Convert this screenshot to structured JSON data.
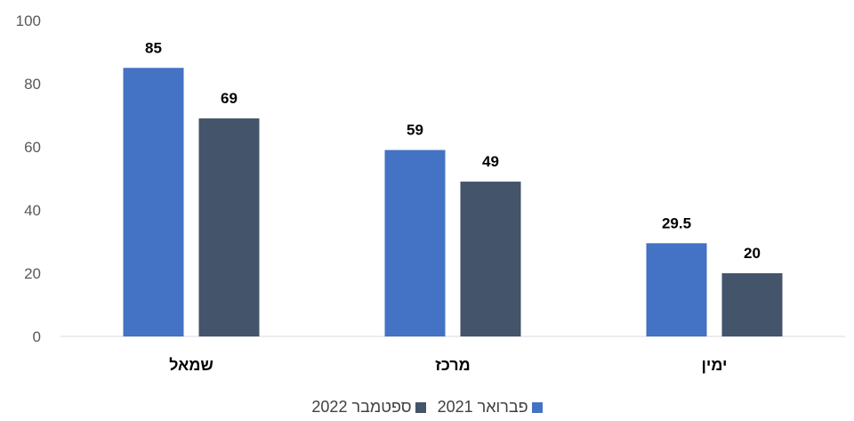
{
  "chart_data": {
    "type": "bar",
    "categories": [
      "שמאל",
      "מרכז",
      "ימין"
    ],
    "series": [
      {
        "name": "פברואר 2021",
        "values": [
          85,
          59,
          29.5
        ],
        "color": "#4472C4"
      },
      {
        "name": "ספטמבר 2022",
        "values": [
          69,
          49,
          20
        ],
        "color": "#44546A"
      }
    ],
    "value_labels": [
      [
        "85",
        "59",
        "29.5"
      ],
      [
        "69",
        "49",
        "20"
      ]
    ],
    "ylim": [
      0,
      100
    ],
    "yticks": [
      0,
      20,
      40,
      60,
      80,
      100
    ],
    "grid": false,
    "legend_position": "bottom",
    "title": "",
    "xlabel": "",
    "ylabel": ""
  }
}
